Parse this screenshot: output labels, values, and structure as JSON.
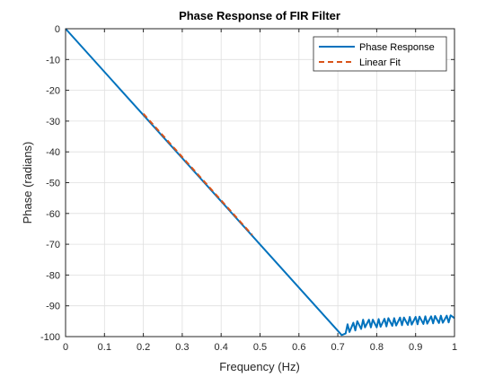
{
  "chart_data": {
    "type": "line",
    "title": "Phase Response of FIR Filter",
    "xlabel": "Frequency (Hz)",
    "ylabel": "Phase (radians)",
    "xlim": [
      0,
      1
    ],
    "ylim": [
      -100,
      0
    ],
    "xticks": [
      0,
      0.1,
      0.2,
      0.3,
      0.4,
      0.5,
      0.6,
      0.7,
      0.8,
      0.9,
      1
    ],
    "xtick_labels": [
      "0",
      "0.1",
      "0.2",
      "0.3",
      "0.4",
      "0.5",
      "0.6",
      "0.7",
      "0.8",
      "0.9",
      "1"
    ],
    "yticks": [
      0,
      -10,
      -20,
      -30,
      -40,
      -50,
      -60,
      -70,
      -80,
      -90,
      -100
    ],
    "ytick_labels": [
      "0",
      "-10",
      "-20",
      "-30",
      "-40",
      "-50",
      "-60",
      "-70",
      "-80",
      "-90",
      "-100"
    ],
    "grid": true,
    "legend_position": "top-right",
    "series": [
      {
        "name": "Phase Response",
        "color": "#0072BD",
        "style": "solid",
        "x": [
          0,
          0.71,
          0.72,
          0.725,
          0.73,
          0.74,
          0.745,
          0.75,
          0.76,
          0.765,
          0.77,
          0.78,
          0.785,
          0.79,
          0.8,
          0.805,
          0.81,
          0.82,
          0.825,
          0.83,
          0.84,
          0.845,
          0.85,
          0.86,
          0.865,
          0.87,
          0.88,
          0.885,
          0.89,
          0.9,
          0.905,
          0.91,
          0.92,
          0.925,
          0.93,
          0.94,
          0.945,
          0.95,
          0.96,
          0.965,
          0.97,
          0.98,
          0.985,
          0.99,
          1.0
        ],
        "y": [
          0,
          -99.5,
          -99,
          -96,
          -98.5,
          -95.5,
          -98,
          -95,
          -97.5,
          -94.5,
          -97,
          -94.5,
          -97,
          -94.5,
          -97,
          -94.3,
          -96.8,
          -94.2,
          -96.7,
          -94,
          -96.5,
          -94,
          -96.4,
          -93.8,
          -96.3,
          -93.8,
          -96.2,
          -93.6,
          -96.1,
          -93.6,
          -96,
          -93.5,
          -95.9,
          -93.4,
          -95.8,
          -93.4,
          -95.7,
          -93.3,
          -95.6,
          -93.2,
          -95.5,
          -93.2,
          -95.4,
          -93.1,
          -94
        ]
      },
      {
        "name": "Linear Fit",
        "color": "#D95319",
        "style": "dashed",
        "x": [
          0.2,
          0.48
        ],
        "y": [
          -27.6,
          -67.0
        ]
      }
    ]
  }
}
